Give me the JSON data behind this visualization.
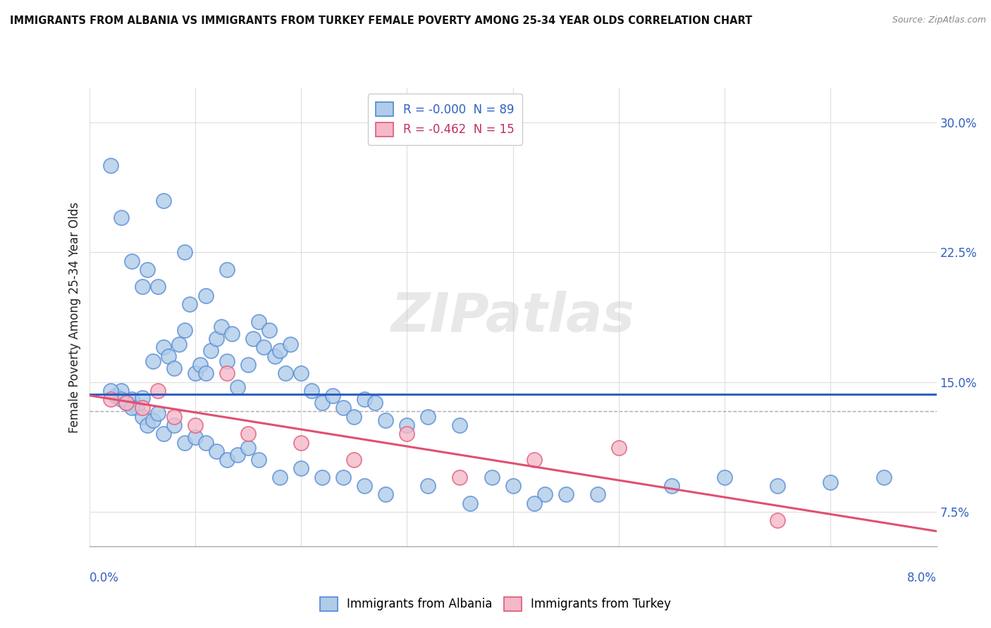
{
  "title": "IMMIGRANTS FROM ALBANIA VS IMMIGRANTS FROM TURKEY FEMALE POVERTY AMONG 25-34 YEAR OLDS CORRELATION CHART",
  "source": "Source: ZipAtlas.com",
  "ylabel": "Female Poverty Among 25-34 Year Olds",
  "yticks": [
    7.5,
    15.0,
    22.5,
    30.0
  ],
  "ytick_labels": [
    "7.5%",
    "15.0%",
    "22.5%",
    "30.0%"
  ],
  "xlim": [
    0.0,
    8.0
  ],
  "ylim": [
    5.5,
    32.0
  ],
  "legend_albania": "R = -0.000  N = 89",
  "legend_turkey": "R = -0.462  N = 15",
  "albania_color": "#b0cce8",
  "albania_edge_color": "#5b8dd9",
  "turkey_color": "#f5b8c8",
  "turkey_edge_color": "#e06080",
  "albania_line_color": "#3060c0",
  "turkey_line_color": "#e05070",
  "albania_legend_text_color": "#3060c0",
  "turkey_legend_text_color": "#c03060",
  "ytick_color": "#3060c0",
  "xlabel_left_color": "#3060c0",
  "xlabel_right_color": "#3060c0",
  "dashed_line_y": 13.3,
  "albania_x": [
    0.25,
    0.3,
    0.35,
    0.4,
    0.45,
    0.5,
    0.55,
    0.6,
    0.65,
    0.7,
    0.75,
    0.8,
    0.85,
    0.9,
    0.95,
    1.0,
    1.05,
    1.1,
    1.15,
    1.2,
    1.25,
    1.3,
    1.35,
    1.4,
    1.5,
    1.55,
    1.6,
    1.65,
    1.7,
    1.75,
    1.8,
    1.85,
    1.9,
    2.0,
    2.1,
    2.2,
    2.3,
    2.4,
    2.5,
    2.6,
    2.7,
    2.8,
    3.0,
    3.2,
    3.5,
    3.8,
    4.0,
    4.3,
    4.5,
    0.2,
    0.3,
    0.4,
    0.5,
    0.55,
    0.6,
    0.65,
    0.7,
    0.8,
    0.9,
    1.0,
    1.1,
    1.2,
    1.3,
    1.4,
    1.5,
    1.6,
    1.8,
    2.0,
    2.2,
    2.4,
    2.6,
    2.8,
    3.2,
    3.6,
    4.2,
    4.8,
    5.5,
    6.0,
    6.5,
    7.0,
    7.5,
    0.2,
    0.3,
    0.4,
    0.5,
    0.7,
    0.9,
    1.1,
    1.3
  ],
  "albania_y": [
    14.2,
    14.5,
    13.8,
    14.0,
    13.5,
    14.1,
    21.5,
    16.2,
    20.5,
    17.0,
    16.5,
    15.8,
    17.2,
    18.0,
    19.5,
    15.5,
    16.0,
    15.5,
    16.8,
    17.5,
    18.2,
    16.2,
    17.8,
    14.7,
    16.0,
    17.5,
    18.5,
    17.0,
    18.0,
    16.5,
    16.8,
    15.5,
    17.2,
    15.5,
    14.5,
    13.8,
    14.2,
    13.5,
    13.0,
    14.0,
    13.8,
    12.8,
    12.5,
    13.0,
    12.5,
    9.5,
    9.0,
    8.5,
    8.5,
    14.5,
    14.0,
    13.5,
    13.0,
    12.5,
    12.8,
    13.2,
    12.0,
    12.5,
    11.5,
    11.8,
    11.5,
    11.0,
    10.5,
    10.8,
    11.2,
    10.5,
    9.5,
    10.0,
    9.5,
    9.5,
    9.0,
    8.5,
    9.0,
    8.0,
    8.0,
    8.5,
    9.0,
    9.5,
    9.0,
    9.2,
    9.5,
    27.5,
    24.5,
    22.0,
    20.5,
    25.5,
    22.5,
    20.0,
    21.5
  ],
  "turkey_x": [
    0.2,
    0.35,
    0.5,
    0.65,
    0.8,
    1.0,
    1.3,
    1.5,
    2.0,
    2.5,
    3.0,
    3.5,
    4.2,
    5.0,
    6.5
  ],
  "turkey_y": [
    14.0,
    13.8,
    13.5,
    14.5,
    13.0,
    12.5,
    15.5,
    12.0,
    11.5,
    10.5,
    12.0,
    9.5,
    10.5,
    11.2,
    7.0
  ]
}
